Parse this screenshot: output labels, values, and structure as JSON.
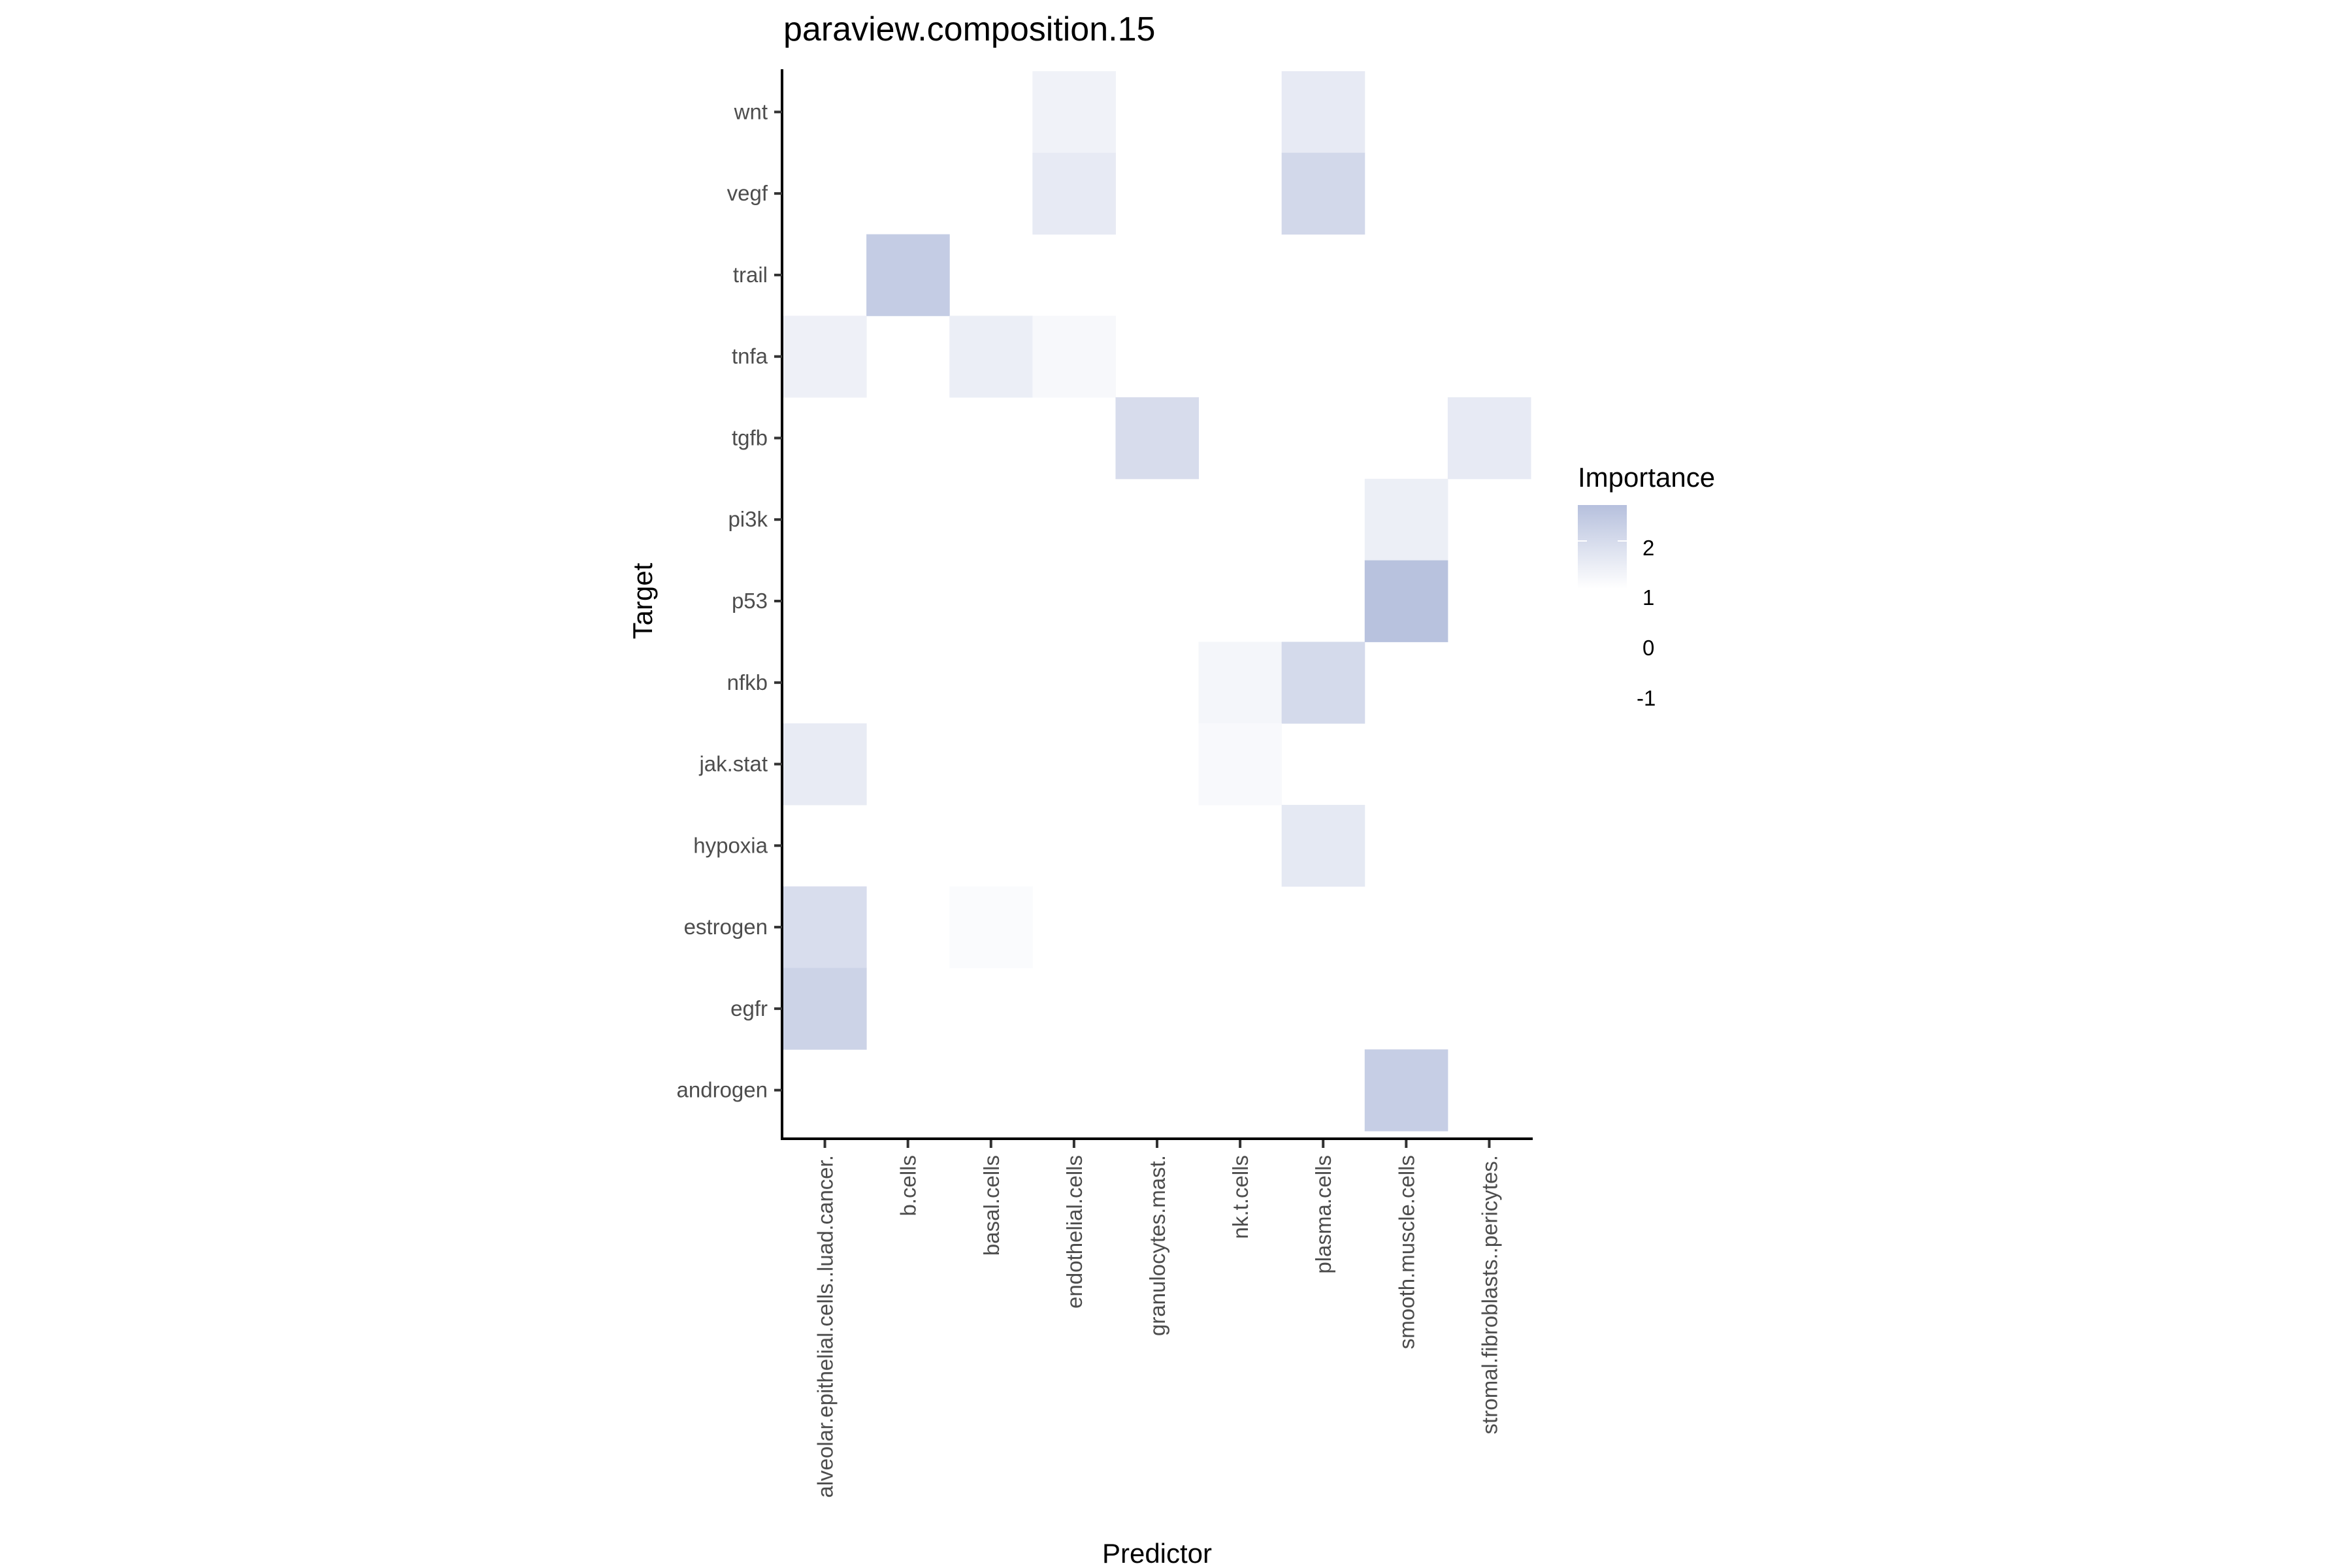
{
  "chart_data": {
    "type": "heatmap",
    "title": "paraview.composition.15",
    "xlabel": "Predictor",
    "ylabel": "Target",
    "x_categories": [
      "alveolar.epithelial.cells..luad.cancer.",
      "b.cells",
      "basal.cells",
      "endothelial.cells",
      "granulocytes.mast.",
      "nk.t.cells",
      "plasma.cells",
      "smooth.muscle.cells",
      "stromal.fibroblasts..pericytes."
    ],
    "y_categories_top_to_bottom": [
      "wnt",
      "vegf",
      "trail",
      "tnfa",
      "tgfb",
      "pi3k",
      "p53",
      "nfkb",
      "jak.stat",
      "hypoxia",
      "estrogen",
      "egfr",
      "androgen"
    ],
    "values": [
      {
        "target": "wnt",
        "predictor": "endothelial.cells",
        "value": 1.37
      },
      {
        "target": "wnt",
        "predictor": "plasma.cells",
        "value": 1.59
      },
      {
        "target": "vegf",
        "predictor": "endothelial.cells",
        "value": 1.59
      },
      {
        "target": "vegf",
        "predictor": "plasma.cells",
        "value": 2.11
      },
      {
        "target": "trail",
        "predictor": "b.cells",
        "value": 2.45
      },
      {
        "target": "tnfa",
        "predictor": "alveolar.epithelial.cells..luad.cancer.",
        "value": 1.42
      },
      {
        "target": "tnfa",
        "predictor": "basal.cells",
        "value": 1.49
      },
      {
        "target": "tnfa",
        "predictor": "endothelial.cells",
        "value": 1.2
      },
      {
        "target": "tgfb",
        "predictor": "granulocytes.mast.",
        "value": 1.99
      },
      {
        "target": "tgfb",
        "predictor": "stromal.fibroblasts..pericytes.",
        "value": 1.59
      },
      {
        "target": "pi3k",
        "predictor": "smooth.muscle.cells",
        "value": 1.47
      },
      {
        "target": "p53",
        "predictor": "smooth.muscle.cells",
        "value": 2.75
      },
      {
        "target": "nfkb",
        "predictor": "nk.t.cells",
        "value": 1.27
      },
      {
        "target": "nfkb",
        "predictor": "plasma.cells",
        "value": 2.06
      },
      {
        "target": "jak.stat",
        "predictor": "alveolar.epithelial.cells..luad.cancer.",
        "value": 1.56
      },
      {
        "target": "jak.stat",
        "predictor": "nk.t.cells",
        "value": 1.17
      },
      {
        "target": "hypoxia",
        "predictor": "plasma.cells",
        "value": 1.64
      },
      {
        "target": "estrogen",
        "predictor": "alveolar.epithelial.cells..luad.cancer.",
        "value": 1.96
      },
      {
        "target": "estrogen",
        "predictor": "basal.cells",
        "value": 1.12
      },
      {
        "target": "egfr",
        "predictor": "alveolar.epithelial.cells..luad.cancer.",
        "value": 2.26
      },
      {
        "target": "androgen",
        "predictor": "smooth.muscle.cells",
        "value": 2.4
      }
    ],
    "legend": {
      "title": "Importance",
      "labels": [
        "2",
        "1",
        "0",
        "-1"
      ],
      "colorbar_range": [
        1.0,
        2.8
      ],
      "position": "right"
    },
    "color_scale": {
      "low": "#ffffff",
      "high": "#b6c0dd",
      "domain": [
        1.0,
        2.8
      ]
    },
    "grid": false
  }
}
